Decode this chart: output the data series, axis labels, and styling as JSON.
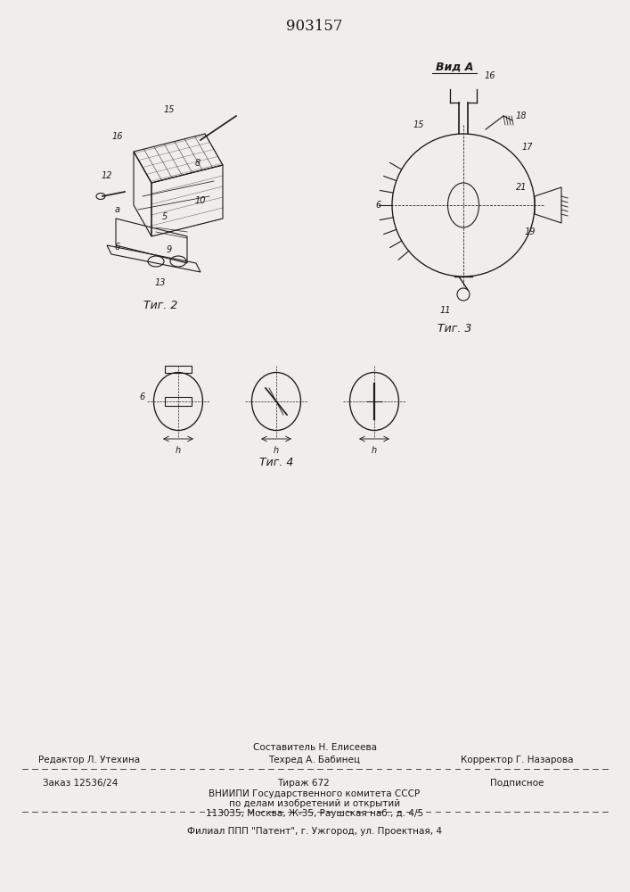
{
  "patent_number": "903157",
  "bg_color": "#f0eeea",
  "line_color": "#1a1a1a",
  "fig2_caption": "Τиг. 2",
  "fig3_caption": "Τиг. 3",
  "fig4_caption": "Τиг. 4",
  "vid_a_label": "Вид А",
  "footer_line1": "Составитель Н. Елисеева",
  "footer_line2_left": "Редактор Л. Утехина",
  "footer_line2_mid": "Техред А. Бабинец",
  "footer_line2_right": "Корректор Г. Назарова",
  "footer_line3_left": "Заказ 12536/24",
  "footer_line3_mid": "Тираж 672",
  "footer_line3_right": "Подписное",
  "footer_line4": "ВНИИПИ Государственного комитета СССР",
  "footer_line5": "по делам изобретений и открытий",
  "footer_line6": "113035, Москва, Ж-35, Раушская наб., д. 4/5",
  "footer_line7": "Филиал ППП \"Патент\", г. Ужгород, ул. Проектная, 4"
}
